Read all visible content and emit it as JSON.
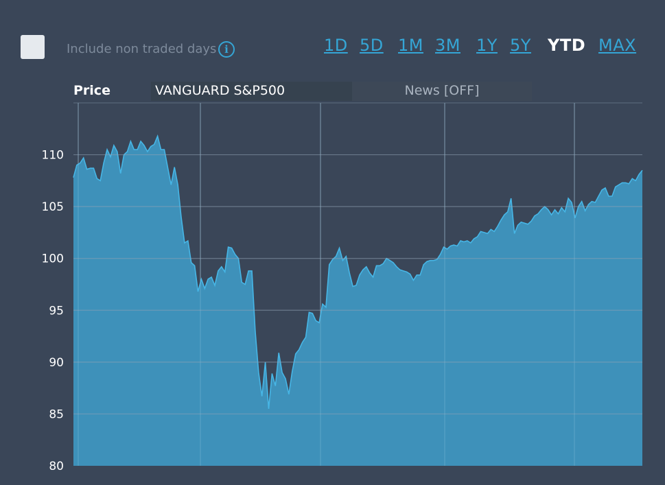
{
  "controls": {
    "include_non_traded_label": "Include non traded days",
    "include_non_traded_checked": false,
    "info_icon": "info-icon",
    "ranges": [
      "1D",
      "5D",
      "1M",
      "3M",
      "1Y",
      "5Y",
      "YTD",
      "MAX"
    ],
    "active_range": "YTD"
  },
  "tabs": {
    "price": "Price",
    "instrument": "VANGUARD S&P500",
    "news": "News [OFF]"
  },
  "colors": {
    "background": "#3a4658",
    "area_fill": "#3e96c0",
    "line": "#47b6e6",
    "accent": "#35a6d6"
  },
  "chart_data": {
    "type": "area",
    "title": "",
    "xlabel": "",
    "ylabel": "",
    "ylim": [
      80,
      115
    ],
    "yticks": [
      80,
      85,
      90,
      95,
      100,
      105,
      110
    ],
    "grid": true,
    "series": [
      {
        "values": [
          107.8,
          109.0,
          109.2,
          109.7,
          108.6,
          108.7,
          108.7,
          107.7,
          107.5,
          109.2,
          110.5,
          109.8,
          110.9,
          110.3,
          108.2,
          110.0,
          110.3,
          111.3,
          110.5,
          110.5,
          111.3,
          110.9,
          110.3,
          110.8,
          111.0,
          111.8,
          110.5,
          110.5,
          108.8,
          107.1,
          108.8,
          107.1,
          104.0,
          101.5,
          101.7,
          99.6,
          99.3,
          96.8,
          98.0,
          97.1,
          98.0,
          98.2,
          97.4,
          98.8,
          99.2,
          98.7,
          101.1,
          101.0,
          100.4,
          100.0,
          97.7,
          97.5,
          98.8,
          98.8,
          93.0,
          89.0,
          86.7,
          90.0,
          85.5,
          88.9,
          87.7,
          90.9,
          89.0,
          88.4,
          86.9,
          89.1,
          90.8,
          91.2,
          91.9,
          92.4,
          94.8,
          94.7,
          94.0,
          93.8,
          95.6,
          95.3,
          99.4,
          99.9,
          100.2,
          101.0,
          99.8,
          100.2,
          98.6,
          97.3,
          97.4,
          98.4,
          98.9,
          99.2,
          98.6,
          98.2,
          99.3,
          99.3,
          99.5,
          100.0,
          99.8,
          99.6,
          99.2,
          98.9,
          98.8,
          98.7,
          98.5,
          97.9,
          98.4,
          98.4,
          99.4,
          99.7,
          99.8,
          99.8,
          99.9,
          100.4,
          101.1,
          100.9,
          101.2,
          101.3,
          101.2,
          101.7,
          101.6,
          101.7,
          101.5,
          101.9,
          102.1,
          102.6,
          102.5,
          102.4,
          102.8,
          102.6,
          103.1,
          103.7,
          104.2,
          104.5,
          105.8,
          102.4,
          103.2,
          103.5,
          103.4,
          103.3,
          103.6,
          104.1,
          104.3,
          104.7,
          105.0,
          104.7,
          104.2,
          104.7,
          104.3,
          104.9,
          104.5,
          105.8,
          105.4,
          103.9,
          105.0,
          105.5,
          104.6,
          105.2,
          105.5,
          105.4,
          106.0,
          106.6,
          106.8,
          106.0,
          106.0,
          106.9,
          107.1,
          107.3,
          107.3,
          107.2,
          107.7,
          107.5,
          108.1,
          108.5
        ]
      }
    ]
  }
}
